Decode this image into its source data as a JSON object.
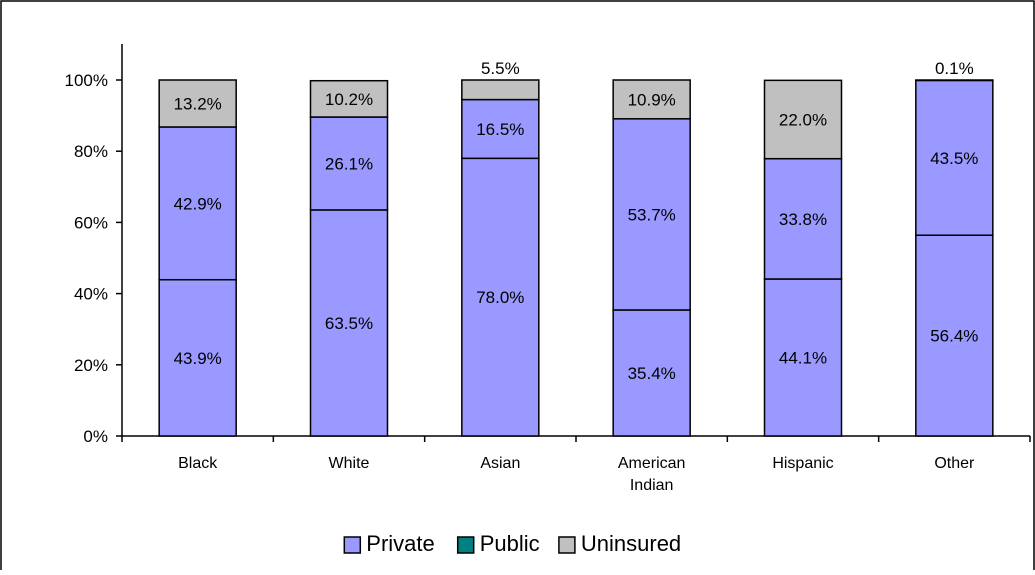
{
  "chart_data": {
    "type": "bar",
    "stacked": true,
    "title": "",
    "xlabel": "",
    "ylabel": "",
    "ylim": [
      0,
      100
    ],
    "yticks": [
      "0%",
      "20%",
      "40%",
      "60%",
      "80%",
      "100%"
    ],
    "ytick_values": [
      0,
      20,
      40,
      60,
      80,
      100
    ],
    "categories": [
      [
        "Black"
      ],
      [
        "White"
      ],
      [
        "Asian"
      ],
      [
        "American",
        "Indian"
      ],
      [
        "Hispanic"
      ],
      [
        "Other"
      ]
    ],
    "series": [
      {
        "name": "Private",
        "color": "#9999ff",
        "values": [
          43.9,
          63.5,
          78.0,
          35.4,
          44.1,
          56.4
        ],
        "labels": [
          "43.9%",
          "63.5%",
          "78.0%",
          "35.4%",
          "44.1%",
          "56.4%"
        ]
      },
      {
        "name": "Public",
        "color": "#9999ff",
        "legend_color": "#008080",
        "values": [
          42.9,
          26.1,
          16.5,
          53.7,
          33.8,
          43.5
        ],
        "labels": [
          "42.9%",
          "26.1%",
          "16.5%",
          "53.7%",
          "33.8%",
          "43.5%"
        ]
      },
      {
        "name": "Uninsured",
        "color": "#c0c0c0",
        "values": [
          13.2,
          10.2,
          5.5,
          10.9,
          22.0,
          0.1
        ],
        "labels": [
          "13.2%",
          "10.2%",
          "5.5%",
          "10.9%",
          "22.0%",
          "0.1%"
        ]
      }
    ],
    "legend": {
      "position": "bottom"
    },
    "grid": false
  }
}
